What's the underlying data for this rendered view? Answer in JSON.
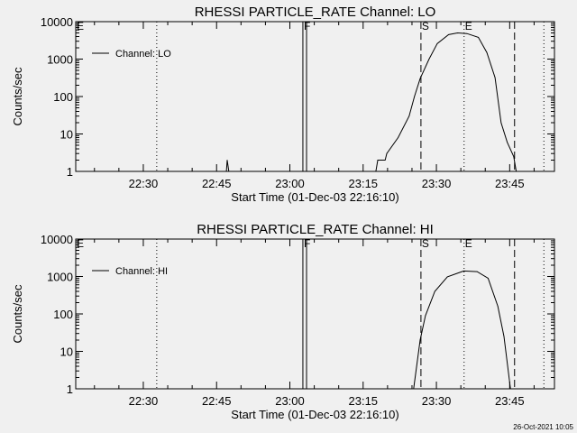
{
  "footer_timestamp": "26-Oct-2021 10:05",
  "chart_data": [
    {
      "type": "line",
      "title": "RHESSI PARTICLE_RATE Channel: LO",
      "xlabel": "Start Time (01-Dec-03 22:16:10)",
      "ylabel": "Counts/sec",
      "yscale": "log",
      "ylim": [
        1,
        10000
      ],
      "xlim": [
        "22:16:10",
        "23:54:10"
      ],
      "xticks": [
        "22:30",
        "22:45",
        "23:00",
        "23:15",
        "23:30",
        "23:45"
      ],
      "yticks": [
        "1",
        "10",
        "100",
        "1000",
        "10000"
      ],
      "legend": {
        "label": "Channel: LO",
        "placement": "top-left"
      },
      "markers": [
        {
          "label": "E",
          "time": "22:16:10",
          "style": "none"
        },
        {
          "label": "",
          "time": "22:32:45",
          "style": "dotted"
        },
        {
          "label": "F",
          "time": "23:02:40",
          "style": "solid"
        },
        {
          "label": "",
          "time": "23:03:25",
          "style": "solid"
        },
        {
          "label": "S",
          "time": "23:26:50",
          "style": "dashed"
        },
        {
          "label": "E",
          "time": "23:35:40",
          "style": "dotted"
        },
        {
          "label": "",
          "time": "23:46:00",
          "style": "dashed"
        },
        {
          "label": "",
          "time": "23:52:00",
          "style": "dotted"
        }
      ],
      "series": [
        {
          "name": "Channel: LO",
          "points": [
            [
              "22:16:10",
              1
            ],
            [
              "22:47:00",
              1
            ],
            [
              "22:47:10",
              2
            ],
            [
              "22:47:30",
              1
            ],
            [
              "23:17:36",
              1
            ],
            [
              "23:18:00",
              2
            ],
            [
              "23:19:30",
              2
            ],
            [
              "23:19:50",
              3
            ],
            [
              "23:22:10",
              8
            ],
            [
              "23:24:25",
              30
            ],
            [
              "23:25:30",
              100
            ],
            [
              "23:26:40",
              300
            ],
            [
              "23:28:30",
              1000
            ],
            [
              "23:30:10",
              2600
            ],
            [
              "23:32:30",
              4500
            ],
            [
              "23:34:20",
              5000
            ],
            [
              "23:36:15",
              4800
            ],
            [
              "23:38:35",
              3800
            ],
            [
              "23:40:20",
              1500
            ],
            [
              "23:42:00",
              320
            ],
            [
              "23:43:15",
              20
            ],
            [
              "23:44:30",
              6
            ],
            [
              "23:45:50",
              2.5
            ],
            [
              "23:46:20",
              1
            ]
          ]
        }
      ]
    },
    {
      "type": "line",
      "title": "RHESSI PARTICLE_RATE Channel: HI",
      "xlabel": "Start Time (01-Dec-03 22:16:10)",
      "ylabel": "Counts/sec",
      "yscale": "log",
      "ylim": [
        1,
        10000
      ],
      "xlim": [
        "22:16:10",
        "23:54:10"
      ],
      "xticks": [
        "22:30",
        "22:45",
        "23:00",
        "23:15",
        "23:30",
        "23:45"
      ],
      "yticks": [
        "1",
        "10",
        "100",
        "1000",
        "10000"
      ],
      "legend": {
        "label": "Channel: HI",
        "placement": "top-left"
      },
      "markers": [
        {
          "label": "E",
          "time": "22:16:10",
          "style": "none"
        },
        {
          "label": "",
          "time": "22:32:45",
          "style": "dotted"
        },
        {
          "label": "F",
          "time": "23:02:40",
          "style": "solid"
        },
        {
          "label": "",
          "time": "23:03:25",
          "style": "solid"
        },
        {
          "label": "S",
          "time": "23:26:50",
          "style": "dashed"
        },
        {
          "label": "E",
          "time": "23:35:40",
          "style": "dotted"
        },
        {
          "label": "",
          "time": "23:46:00",
          "style": "dashed"
        },
        {
          "label": "",
          "time": "23:52:00",
          "style": "dotted"
        }
      ],
      "series": [
        {
          "name": "Channel: HI",
          "points": [
            [
              "23:25:20",
              1
            ],
            [
              "23:26:40",
              20
            ],
            [
              "23:27:45",
              90
            ],
            [
              "23:29:40",
              400
            ],
            [
              "23:32:15",
              980
            ],
            [
              "23:35:35",
              1400
            ],
            [
              "23:38:20",
              1350
            ],
            [
              "23:40:35",
              900
            ],
            [
              "23:42:35",
              160
            ],
            [
              "23:43:50",
              25
            ],
            [
              "23:45:10",
              1
            ]
          ]
        }
      ]
    }
  ]
}
